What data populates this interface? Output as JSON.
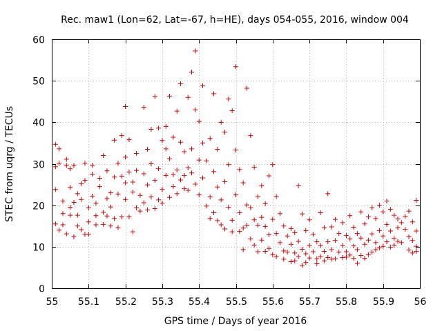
{
  "chart_data": {
    "type": "scatter",
    "title": "Rec. maw1 (Lon=62, Lat=-67, h=HE), days 054-055, 2016, window 004",
    "xlabel": "GPS time / Days of year 2016",
    "ylabel": "STEC from uqrg / TECUs",
    "xlim": [
      55,
      56
    ],
    "ylim": [
      0,
      60
    ],
    "xticks": [
      "55",
      "55.1",
      "55.2",
      "55.3",
      "55.4",
      "55.5",
      "55.6",
      "55.7",
      "55.8",
      "55.9",
      "56"
    ],
    "yticks": [
      "0",
      "10",
      "20",
      "30",
      "40",
      "50",
      "60"
    ],
    "grid": true,
    "marker": "+",
    "marker_color": "#cc0000",
    "series": [
      {
        "points": [
          [
            55.01,
            34.7
          ],
          [
            55.01,
            29.3
          ],
          [
            55.01,
            23.8
          ],
          [
            55.01,
            15.5
          ],
          [
            55.02,
            14.0
          ],
          [
            55.02,
            30.1
          ],
          [
            55.02,
            33.6
          ],
          [
            55.03,
            21.0
          ],
          [
            55.03,
            15.3
          ],
          [
            55.03,
            18.0
          ],
          [
            55.04,
            13.1
          ],
          [
            55.04,
            31.1
          ],
          [
            55.04,
            29.6
          ],
          [
            55.05,
            17.6
          ],
          [
            55.05,
            28.8
          ],
          [
            55.05,
            24.3
          ],
          [
            55.05,
            19.5
          ],
          [
            55.06,
            20.7
          ],
          [
            55.06,
            12.4
          ],
          [
            55.06,
            29.6
          ],
          [
            55.07,
            22.8
          ],
          [
            55.07,
            15.0
          ],
          [
            55.07,
            17.6
          ],
          [
            55.08,
            25.2
          ],
          [
            55.08,
            21.4
          ],
          [
            55.08,
            14.1
          ],
          [
            55.09,
            13.0
          ],
          [
            55.09,
            30.1
          ],
          [
            55.09,
            26.0
          ],
          [
            55.1,
            19.4
          ],
          [
            55.1,
            16.0
          ],
          [
            55.1,
            13.0
          ],
          [
            55.11,
            27.5
          ],
          [
            55.11,
            22.2
          ],
          [
            55.11,
            29.6
          ],
          [
            55.12,
            17.5
          ],
          [
            55.12,
            15.3
          ],
          [
            55.12,
            20.5
          ],
          [
            55.13,
            24.5
          ],
          [
            55.13,
            26.5
          ],
          [
            55.14,
            18.3
          ],
          [
            55.14,
            15.4
          ],
          [
            55.14,
            32.0
          ],
          [
            55.15,
            21.6
          ],
          [
            55.15,
            17.4
          ],
          [
            55.15,
            28.3
          ],
          [
            55.16,
            15.0
          ],
          [
            55.16,
            23.0
          ],
          [
            55.16,
            19.6
          ],
          [
            55.17,
            35.7
          ],
          [
            55.17,
            26.8
          ],
          [
            55.17,
            16.8
          ],
          [
            55.18,
            22.7
          ],
          [
            55.18,
            30.1
          ],
          [
            55.18,
            14.6
          ],
          [
            55.19,
            36.8
          ],
          [
            55.19,
            27.0
          ],
          [
            55.19,
            17.2
          ],
          [
            55.2,
            43.8
          ],
          [
            55.2,
            25.4
          ],
          [
            55.2,
            31.6
          ],
          [
            55.2,
            21.4
          ],
          [
            55.21,
            17.2
          ],
          [
            55.21,
            28.0
          ],
          [
            55.21,
            35.8
          ],
          [
            55.22,
            23.2
          ],
          [
            55.22,
            13.6
          ],
          [
            55.22,
            25.6
          ],
          [
            55.23,
            19.4
          ],
          [
            55.23,
            28.4
          ],
          [
            55.23,
            32.5
          ],
          [
            55.24,
            22.4
          ],
          [
            55.24,
            18.6
          ],
          [
            55.25,
            43.6
          ],
          [
            55.25,
            27.6
          ],
          [
            55.25,
            20.6
          ],
          [
            55.26,
            33.5
          ],
          [
            55.26,
            24.9
          ],
          [
            55.26,
            18.9
          ],
          [
            55.27,
            38.3
          ],
          [
            55.27,
            30.0
          ],
          [
            55.27,
            22.0
          ],
          [
            55.28,
            46.2
          ],
          [
            55.28,
            26.0
          ],
          [
            55.28,
            19.2
          ],
          [
            55.29,
            28.8
          ],
          [
            55.29,
            21.3
          ],
          [
            55.29,
            38.6
          ],
          [
            55.3,
            35.6
          ],
          [
            55.3,
            23.8
          ],
          [
            55.3,
            20.5
          ],
          [
            55.31,
            39.0
          ],
          [
            55.31,
            33.6
          ],
          [
            55.31,
            27.2
          ],
          [
            55.32,
            46.3
          ],
          [
            55.32,
            31.2
          ],
          [
            55.32,
            21.9
          ],
          [
            55.33,
            36.4
          ],
          [
            55.33,
            27.4
          ],
          [
            55.33,
            24.5
          ],
          [
            55.34,
            42.7
          ],
          [
            55.34,
            28.5
          ],
          [
            55.34,
            22.8
          ],
          [
            55.35,
            49.3
          ],
          [
            55.35,
            35.2
          ],
          [
            55.35,
            26.1
          ],
          [
            55.36,
            32.9
          ],
          [
            55.36,
            27.2
          ],
          [
            55.36,
            24.0
          ],
          [
            55.37,
            46.0
          ],
          [
            55.37,
            29.0
          ],
          [
            55.37,
            23.6
          ],
          [
            55.38,
            52.1
          ],
          [
            55.38,
            33.6
          ],
          [
            55.38,
            27.8
          ],
          [
            55.39,
            57.2
          ],
          [
            55.39,
            43.0
          ],
          [
            55.39,
            25.1
          ],
          [
            55.4,
            40.2
          ],
          [
            55.4,
            30.9
          ],
          [
            55.4,
            22.5
          ],
          [
            55.41,
            48.8
          ],
          [
            55.41,
            35.0
          ],
          [
            55.41,
            26.6
          ],
          [
            55.42,
            19.8
          ],
          [
            55.42,
            30.7
          ],
          [
            55.43,
            36.1
          ],
          [
            55.43,
            22.0
          ],
          [
            55.43,
            16.8
          ],
          [
            55.44,
            46.9
          ],
          [
            55.44,
            28.1
          ],
          [
            55.44,
            18.2
          ],
          [
            55.45,
            33.5
          ],
          [
            55.45,
            24.4
          ],
          [
            55.45,
            16.3
          ],
          [
            55.46,
            40.0
          ],
          [
            55.46,
            21.3
          ],
          [
            55.46,
            15.3
          ],
          [
            55.47,
            37.6
          ],
          [
            55.47,
            25.7
          ],
          [
            55.47,
            14.3
          ],
          [
            55.48,
            45.6
          ],
          [
            55.48,
            29.8
          ],
          [
            55.48,
            19.5
          ],
          [
            55.49,
            42.8
          ],
          [
            55.49,
            16.4
          ],
          [
            55.49,
            13.6
          ],
          [
            55.5,
            53.4
          ],
          [
            55.5,
            33.3
          ],
          [
            55.5,
            22.5
          ],
          [
            55.51,
            28.6
          ],
          [
            55.51,
            18.2
          ],
          [
            55.51,
            13.7
          ],
          [
            55.52,
            25.4
          ],
          [
            55.52,
            14.5
          ],
          [
            55.52,
            9.3
          ],
          [
            55.53,
            48.2
          ],
          [
            55.53,
            20.1
          ],
          [
            55.53,
            15.2
          ],
          [
            55.54,
            36.8
          ],
          [
            55.54,
            19.4
          ],
          [
            55.54,
            11.9
          ],
          [
            55.55,
            29.2
          ],
          [
            55.55,
            16.5
          ],
          [
            55.55,
            10.4
          ],
          [
            55.56,
            22.1
          ],
          [
            55.56,
            15.2
          ],
          [
            55.56,
            8.8
          ],
          [
            55.57,
            24.7
          ],
          [
            55.57,
            17.1
          ],
          [
            55.57,
            11.6
          ],
          [
            55.58,
            20.4
          ],
          [
            55.58,
            14.9
          ],
          [
            55.58,
            8.9
          ],
          [
            55.59,
            27.1
          ],
          [
            55.59,
            12.9
          ],
          [
            55.59,
            9.6
          ],
          [
            55.6,
            29.8
          ],
          [
            55.6,
            16.6
          ],
          [
            55.6,
            8.1
          ],
          [
            55.61,
            22.1
          ],
          [
            55.61,
            13.2
          ],
          [
            55.61,
            7.6
          ],
          [
            55.62,
            18.0
          ],
          [
            55.62,
            11.0
          ],
          [
            55.63,
            15.0
          ],
          [
            55.63,
            9.0
          ],
          [
            55.63,
            7.0
          ],
          [
            55.64,
            12.6
          ],
          [
            55.64,
            8.7
          ],
          [
            55.65,
            14.4
          ],
          [
            55.65,
            10.6
          ],
          [
            55.65,
            6.4
          ],
          [
            55.66,
            13.4
          ],
          [
            55.66,
            8.5
          ],
          [
            55.66,
            6.6
          ],
          [
            55.67,
            24.7
          ],
          [
            55.67,
            11.3
          ],
          [
            55.67,
            7.6
          ],
          [
            55.68,
            17.9
          ],
          [
            55.68,
            9.4
          ],
          [
            55.68,
            5.5
          ],
          [
            55.69,
            13.9
          ],
          [
            55.69,
            8.3
          ],
          [
            55.69,
            6.2
          ],
          [
            55.7,
            16.5
          ],
          [
            55.7,
            10.3
          ],
          [
            55.7,
            7.3
          ],
          [
            55.71,
            13.0
          ],
          [
            55.71,
            8.8
          ],
          [
            55.72,
            11.2
          ],
          [
            55.72,
            7.1
          ],
          [
            55.72,
            5.9
          ],
          [
            55.73,
            18.2
          ],
          [
            55.73,
            10.3
          ],
          [
            55.73,
            7.6
          ],
          [
            55.74,
            14.6
          ],
          [
            55.74,
            8.9
          ],
          [
            55.74,
            6.6
          ],
          [
            55.75,
            22.8
          ],
          [
            55.75,
            11.2
          ],
          [
            55.75,
            7.4
          ],
          [
            55.76,
            14.8
          ],
          [
            55.76,
            9.3
          ],
          [
            55.76,
            7.0
          ],
          [
            55.77,
            16.6
          ],
          [
            55.77,
            11.5
          ],
          [
            55.77,
            7.1
          ],
          [
            55.78,
            13.2
          ],
          [
            55.78,
            8.7
          ],
          [
            55.79,
            15.8
          ],
          [
            55.79,
            10.3
          ],
          [
            55.79,
            7.4
          ],
          [
            55.8,
            12.7
          ],
          [
            55.8,
            8.8
          ],
          [
            55.8,
            7.5
          ],
          [
            55.81,
            17.5
          ],
          [
            55.81,
            11.9
          ],
          [
            55.81,
            8.0
          ],
          [
            55.82,
            14.7
          ],
          [
            55.82,
            10.2
          ],
          [
            55.82,
            7.2
          ],
          [
            55.83,
            13.2
          ],
          [
            55.83,
            9.3
          ],
          [
            55.83,
            6.0
          ],
          [
            55.84,
            18.4
          ],
          [
            55.84,
            12.1
          ],
          [
            55.84,
            7.9
          ],
          [
            55.85,
            15.5
          ],
          [
            55.85,
            10.6
          ],
          [
            55.85,
            7.2
          ],
          [
            55.86,
            17.2
          ],
          [
            55.86,
            11.6
          ],
          [
            55.86,
            8.1
          ],
          [
            55.87,
            19.4
          ],
          [
            55.87,
            13.1
          ],
          [
            55.87,
            8.7
          ],
          [
            55.88,
            16.8
          ],
          [
            55.88,
            11.0
          ],
          [
            55.88,
            9.3
          ],
          [
            55.89,
            20.0
          ],
          [
            55.89,
            13.9
          ],
          [
            55.89,
            9.7
          ],
          [
            55.9,
            18.4
          ],
          [
            55.9,
            12.6
          ],
          [
            55.9,
            10.1
          ],
          [
            55.91,
            21.0
          ],
          [
            55.91,
            15.4
          ],
          [
            55.91,
            11.2
          ],
          [
            55.92,
            19.0
          ],
          [
            55.92,
            13.8
          ],
          [
            55.92,
            9.9
          ],
          [
            55.93,
            17.6
          ],
          [
            55.93,
            12.0
          ],
          [
            55.93,
            10.4
          ],
          [
            55.94,
            16.7
          ],
          [
            55.94,
            14.6
          ],
          [
            55.94,
            11.3
          ],
          [
            55.95,
            15.8
          ],
          [
            55.95,
            11.0
          ],
          [
            55.96,
            17.3
          ],
          [
            55.96,
            14.2
          ],
          [
            55.97,
            18.6
          ],
          [
            55.97,
            12.4
          ],
          [
            55.97,
            9.2
          ],
          [
            55.98,
            16.0
          ],
          [
            55.98,
            11.5
          ],
          [
            55.98,
            8.5
          ],
          [
            55.99,
            13.8
          ],
          [
            55.99,
            10.1
          ],
          [
            55.99,
            21.2
          ],
          [
            55.99,
            8.9
          ]
        ]
      }
    ]
  }
}
